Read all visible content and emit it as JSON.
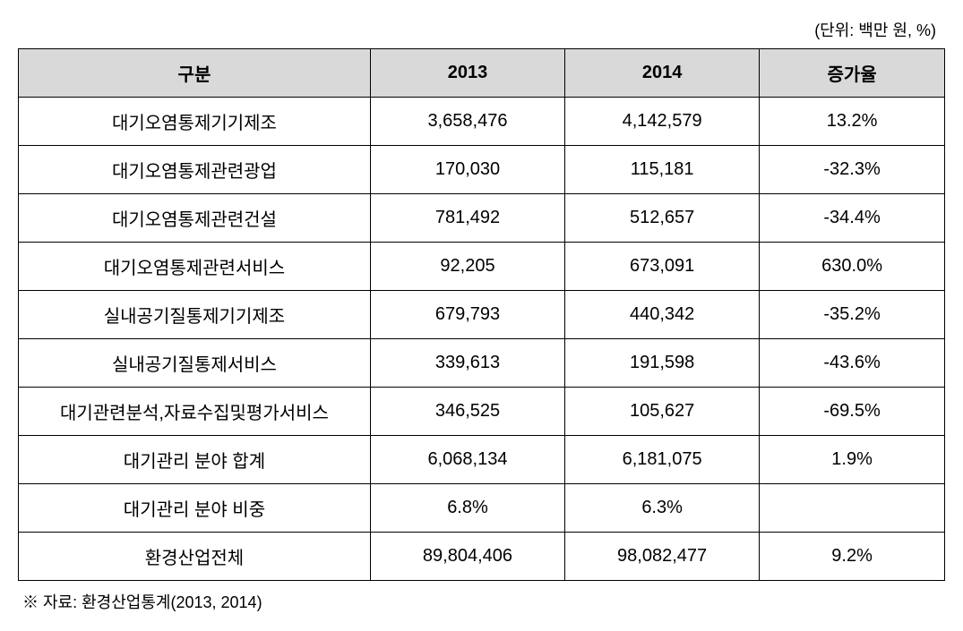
{
  "unit_label": "(단위: 백만 원, %)",
  "table": {
    "headers": {
      "category": "구분",
      "year1": "2013",
      "year2": "2014",
      "rate": "증가율"
    },
    "rows": [
      {
        "category": "대기오염통제기기제조",
        "year1": "3,658,476",
        "year2": "4,142,579",
        "rate": "13.2%"
      },
      {
        "category": "대기오염통제관련광업",
        "year1": "170,030",
        "year2": "115,181",
        "rate": "-32.3%"
      },
      {
        "category": "대기오염통제관련건설",
        "year1": "781,492",
        "year2": "512,657",
        "rate": "-34.4%"
      },
      {
        "category": "대기오염통제관련서비스",
        "year1": "92,205",
        "year2": "673,091",
        "rate": "630.0%"
      },
      {
        "category": "실내공기질통제기기제조",
        "year1": "679,793",
        "year2": "440,342",
        "rate": "-35.2%"
      },
      {
        "category": "실내공기질통제서비스",
        "year1": "339,613",
        "year2": "191,598",
        "rate": "-43.6%"
      },
      {
        "category": "대기관련분석,자료수집및평가서비스",
        "year1": "346,525",
        "year2": "105,627",
        "rate": "-69.5%"
      },
      {
        "category": "대기관리 분야 합계",
        "year1": "6,068,134",
        "year2": "6,181,075",
        "rate": "1.9%"
      },
      {
        "category": "대기관리 분야 비중",
        "year1": "6.8%",
        "year2": "6.3%",
        "rate": ""
      },
      {
        "category": "환경산업전체",
        "year1": "89,804,406",
        "year2": "98,082,477",
        "rate": "9.2%"
      }
    ]
  },
  "footnote": "※ 자료: 환경산업통계(2013, 2014)",
  "styles": {
    "header_bg": "#d9d9d9",
    "border_color": "#000000",
    "background_color": "#ffffff",
    "font_size_cell": 20,
    "font_size_unit": 18,
    "font_size_footnote": 18
  }
}
